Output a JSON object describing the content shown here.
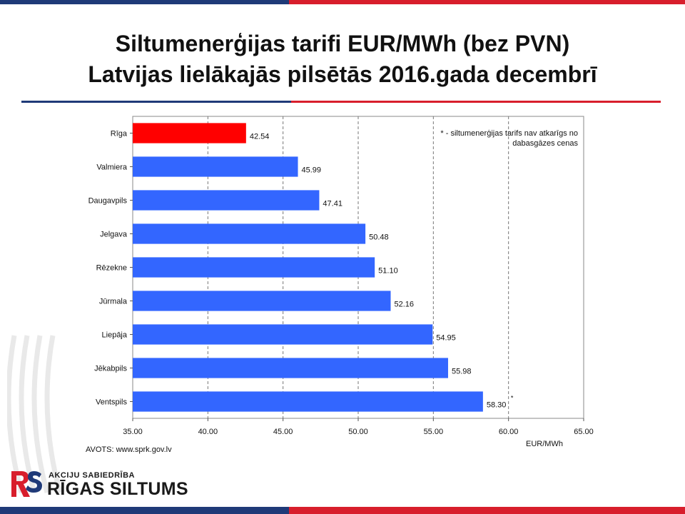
{
  "title_line1": "Siltumenerģijas tarifi EUR/MWh (bez PVN)",
  "title_line2": "Latvijas lielākajās pilsētās 2016.gada decembrī",
  "source": "AVOTS: www.sprk.gov.lv",
  "note_line1": "* - siltumenerģijas tarifs nav atkarīgs no",
  "note_line2": "dabasgāzes cenas",
  "logo_subtitle": "AKCIJU SABIEDRĪBA",
  "logo_name": "RĪGAS SILTUMS",
  "colors": {
    "highlight": "#ff0000",
    "bar": "#3366ff",
    "brand_blue": "#1f3a78",
    "brand_red": "#d81e2c"
  },
  "chart_data": {
    "type": "bar",
    "orientation": "horizontal",
    "xlabel": "EUR/MWh",
    "xlim": [
      35.0,
      65.0
    ],
    "ticks": [
      "35.00",
      "40.00",
      "45.00",
      "50.00",
      "55.00",
      "60.00",
      "65.00"
    ],
    "grid": true,
    "categories": [
      "Rīga",
      "Valmiera",
      "Daugavpils",
      "Jelgava",
      "Rēzekne",
      "Jūrmala",
      "Liepāja",
      "Jēkabpils",
      "Ventspils"
    ],
    "values": [
      42.54,
      45.99,
      47.41,
      50.48,
      51.1,
      52.16,
      54.95,
      55.98,
      58.3
    ],
    "labels": [
      "42.54",
      "45.99",
      "47.41",
      "50.48",
      "51.10",
      "52.16",
      "54.95",
      "55.98",
      "58.30"
    ],
    "highlight": "Rīga",
    "asterisk_on": "Ventspils",
    "asterisk": "*"
  }
}
